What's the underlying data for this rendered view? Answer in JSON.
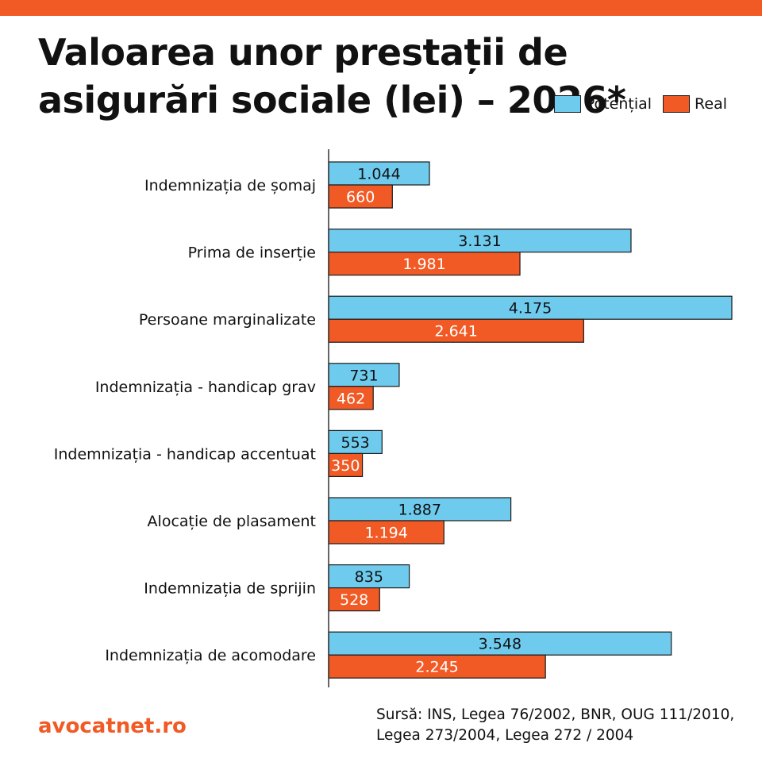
{
  "colors": {
    "accent": "#F15A24",
    "potential": "#6ECBEE",
    "real": "#F15A24",
    "outline": "#1a1a1a"
  },
  "title": "Valoarea unor prestații de asigurări sociale (lei) – 2026*",
  "footer": {
    "brand": "avocatnet.ro",
    "source": "Sursă: INS, Legea 76/2002, BNR, OUG 111/2010, Legea 273/2004, Legea 272 / 2004"
  },
  "chart_data": {
    "type": "bar",
    "orientation": "horizontal",
    "title": "Valoarea unor prestații de asigurări sociale (lei) – 2026*",
    "categories": [
      "Indemnizația de șomaj",
      "Prima de inserție",
      "Persoane marginalizate",
      "Indemnizația - handicap grav",
      "Indemnizația - handicap accentuat",
      "Alocație de plasament",
      "Indemnizația de sprijin",
      "Indemnizația de acomodare"
    ],
    "series": [
      {
        "name": "Potențial",
        "color": "#6ECBEE",
        "values": [
          1044,
          3131,
          4175,
          731,
          553,
          1887,
          835,
          3548
        ],
        "labels": [
          "1.044",
          "3.131",
          "4.175",
          "731",
          "553",
          "1.887",
          "835",
          "3.548"
        ]
      },
      {
        "name": "Real",
        "color": "#F15A24",
        "values": [
          660,
          1981,
          2641,
          462,
          350,
          1194,
          528,
          2245
        ],
        "labels": [
          "660",
          "1.981",
          "2.641",
          "462",
          "350",
          "1.194",
          "528",
          "2.245"
        ]
      }
    ],
    "xlim": [
      0,
      4175
    ],
    "grid": false,
    "legend_position": "top-right"
  }
}
